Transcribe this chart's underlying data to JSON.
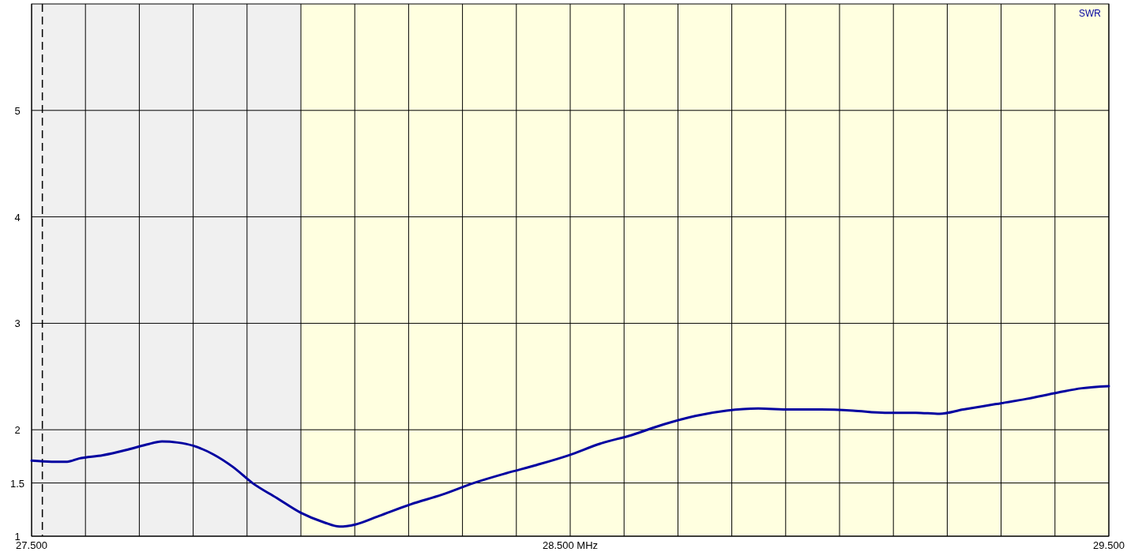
{
  "chart_data": {
    "type": "line",
    "x": [
      27.5,
      27.537,
      27.566,
      27.588,
      27.632,
      27.676,
      27.713,
      27.742,
      27.771,
      27.8,
      27.837,
      27.874,
      27.91,
      27.955,
      28.0,
      28.043,
      28.072,
      28.101,
      28.145,
      28.204,
      28.262,
      28.321,
      28.38,
      28.438,
      28.497,
      28.556,
      28.614,
      28.673,
      28.732,
      28.79,
      28.849,
      28.908,
      28.966,
      29.025,
      29.084,
      29.142,
      29.186,
      29.23,
      29.289,
      29.347,
      29.406,
      29.45,
      29.5
    ],
    "series": [
      {
        "name": "SWR",
        "color": "#0000a0",
        "values": [
          1.71,
          1.7,
          1.7,
          1.73,
          1.76,
          1.81,
          1.86,
          1.89,
          1.88,
          1.85,
          1.77,
          1.65,
          1.5,
          1.36,
          1.22,
          1.13,
          1.09,
          1.11,
          1.19,
          1.3,
          1.39,
          1.5,
          1.59,
          1.67,
          1.76,
          1.87,
          1.95,
          2.05,
          2.13,
          2.18,
          2.2,
          2.19,
          2.19,
          2.18,
          2.16,
          2.16,
          2.15,
          2.19,
          2.24,
          2.29,
          2.35,
          2.39,
          2.41
        ]
      }
    ],
    "xlim": [
      27.5,
      29.5
    ],
    "xticks": [
      {
        "value": 27.5,
        "label": "27.500"
      },
      {
        "value": 27.6,
        "label": null
      },
      {
        "value": 27.7,
        "label": null
      },
      {
        "value": 27.8,
        "label": null
      },
      {
        "value": 27.9,
        "label": null
      },
      {
        "value": 28.0,
        "label": null
      },
      {
        "value": 28.1,
        "label": null
      },
      {
        "value": 28.2,
        "label": null
      },
      {
        "value": 28.3,
        "label": null
      },
      {
        "value": 28.4,
        "label": null
      },
      {
        "value": 28.5,
        "label": "28.500 MHz"
      },
      {
        "value": 28.6,
        "label": null
      },
      {
        "value": 28.7,
        "label": null
      },
      {
        "value": 28.8,
        "label": null
      },
      {
        "value": 28.9,
        "label": null
      },
      {
        "value": 29.0,
        "label": null
      },
      {
        "value": 29.1,
        "label": null
      },
      {
        "value": 29.2,
        "label": null
      },
      {
        "value": 29.3,
        "label": null
      },
      {
        "value": 29.4,
        "label": null
      },
      {
        "value": 29.5,
        "label": "29.500"
      }
    ],
    "ylim": [
      1,
      6
    ],
    "yticks": [
      1,
      1.5,
      2,
      3,
      4,
      5
    ],
    "grid": true,
    "legend": "top right",
    "line_style": "solid",
    "marker": "none",
    "bands": [
      {
        "axis": "x",
        "from": 27.5,
        "to": 28.0,
        "color": "#f0f0f0"
      },
      {
        "axis": "x",
        "from": 28.0,
        "to": 29.5,
        "color": "#ffffe0"
      }
    ],
    "ref_lines": [
      {
        "axis": "x",
        "value": 27.52,
        "color": "#000000",
        "line_style": "dashed"
      }
    ]
  }
}
